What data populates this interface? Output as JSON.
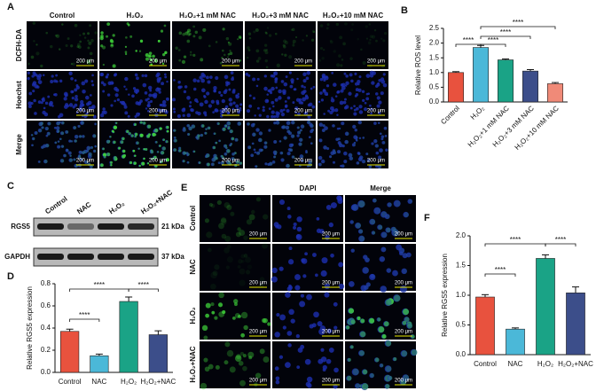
{
  "panel_labels": [
    "A",
    "B",
    "C",
    "D",
    "E",
    "F"
  ],
  "scale_bar": "200 μm",
  "panel_a": {
    "columns": [
      "Control",
      "H₂O₂",
      "H₂O₂+1 mM NAC",
      "H₂O₂+3 mM NAC",
      "H₂O₂+10 mM NAC"
    ],
    "rows": [
      "DCFH-DA",
      "Hoechst",
      "Merge"
    ]
  },
  "panel_c": {
    "columns": [
      "Control",
      "NAC",
      "H₂O₂",
      "H₂O₂+NAC"
    ],
    "rows": [
      "RGS5",
      "GAPDH"
    ],
    "sizes": [
      "21 kDa",
      "37 kDa"
    ]
  },
  "panel_e": {
    "columns": [
      "RGS5",
      "DAPI",
      "Merge"
    ],
    "rows": [
      "Control",
      "NAC",
      "H₂O₂",
      "H₂O₂+NAC"
    ]
  },
  "chart_data": [
    {
      "type": "bar",
      "y_label": "Relative ROS level",
      "categories": [
        "Control",
        "H₂O₂",
        "H₂O₂+1 mM NAC",
        "H₂O₂+3 mM NAC",
        "H₂O₂+10 mM NAC"
      ],
      "values": [
        1.0,
        1.85,
        1.43,
        1.05,
        0.62
      ],
      "errors": [
        0.03,
        0.07,
        0.03,
        0.05,
        0.04
      ],
      "colors": [
        "#e8523e",
        "#4bb8d8",
        "#1aa386",
        "#3c4e8a",
        "#f08a78"
      ],
      "ylim": [
        0,
        2.5
      ],
      "yticks": [
        {
          "value": 0,
          "label": "0.0"
        },
        {
          "value": 0.5,
          "label": "0.5"
        },
        {
          "value": 1,
          "label": "1.0"
        },
        {
          "value": 1.5,
          "label": "1.5"
        },
        {
          "value": 2,
          "label": "2.0"
        },
        {
          "value": 2.5,
          "label": "2.5"
        }
      ],
      "annotations": [
        "****",
        "****",
        "****",
        "****"
      ]
    },
    {
      "type": "bar",
      "y_label": "Relative RGS5 expression",
      "categories": [
        "Control",
        "NAC",
        "H₂O₂",
        "H₂O₂+NAC"
      ],
      "values": [
        0.37,
        0.15,
        0.64,
        0.34
      ],
      "errors": [
        0.02,
        0.015,
        0.04,
        0.035
      ],
      "colors": [
        "#e8523e",
        "#4bb8d8",
        "#1aa386",
        "#3c4e8a"
      ],
      "ylim": [
        0,
        0.8
      ],
      "yticks": [
        {
          "value": 0,
          "label": "0.0"
        },
        0.2,
        0.4,
        0.6,
        0.8
      ],
      "annotations": [
        "****",
        "****",
        "****"
      ]
    },
    {
      "type": "bar",
      "y_label": "Relative RGS5 expression",
      "categories": [
        "Control",
        "NAC",
        "H₂O₂",
        "H₂O₂+NAC"
      ],
      "values": [
        0.97,
        0.43,
        1.62,
        1.04
      ],
      "errors": [
        0.04,
        0.02,
        0.06,
        0.1
      ],
      "colors": [
        "#e8523e",
        "#4bb8d8",
        "#1aa386",
        "#3c4e8a"
      ],
      "ylim": [
        0,
        2
      ],
      "yticks": [
        {
          "value": 0,
          "label": "0.0"
        },
        {
          "value": 0.5,
          "label": "0.5"
        },
        {
          "value": 1,
          "label": "1.0"
        },
        {
          "value": 1.5,
          "label": "1.5"
        },
        {
          "value": 2,
          "label": "2.0"
        }
      ],
      "annotations": [
        "****",
        "****",
        "****"
      ]
    }
  ]
}
